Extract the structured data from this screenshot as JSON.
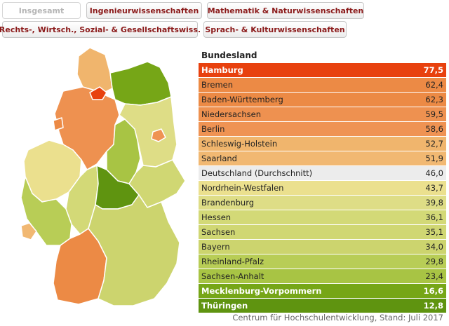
{
  "tabs": [
    {
      "label": "Insgesamt",
      "active": true
    },
    {
      "label": "Ingenieurwissenschaften",
      "active": false
    },
    {
      "label": "Mathematik & Naturwissenschaften",
      "active": false
    },
    {
      "label": "Rechts-, Wirtsch., Sozial- & Gesellschaftswiss.",
      "active": false
    },
    {
      "label": "Sprach- & Kulturwissenschaften",
      "active": false
    }
  ],
  "table": {
    "header": "Bundesland",
    "rows": [
      {
        "name": "Hamburg",
        "value": "77,5",
        "color": "#e8410e",
        "dark": true
      },
      {
        "name": "Bremen",
        "value": "62,4",
        "color": "#ec8a45",
        "dark": false
      },
      {
        "name": "Baden-Württemberg",
        "value": "62,3",
        "color": "#ec8a45",
        "dark": false
      },
      {
        "name": "Niedersachsen",
        "value": "59,5",
        "color": "#ee9150",
        "dark": false
      },
      {
        "name": "Berlin",
        "value": "58,6",
        "color": "#ef9353",
        "dark": false
      },
      {
        "name": "Schleswig-Holstein",
        "value": "52,7",
        "color": "#f0b56d",
        "dark": false
      },
      {
        "name": "Saarland",
        "value": "51,9",
        "color": "#f1b872",
        "dark": false
      },
      {
        "name": "Deutschland (Durchschnitt)",
        "value": "46,0",
        "color": "#ececec",
        "dark": false
      },
      {
        "name": "Nordrhein-Westfalen",
        "value": "43,7",
        "color": "#ebe08e",
        "dark": false
      },
      {
        "name": "Brandenburg",
        "value": "39,8",
        "color": "#dedd86",
        "dark": false
      },
      {
        "name": "Hessen",
        "value": "36,1",
        "color": "#d3d977",
        "dark": false
      },
      {
        "name": "Sachsen",
        "value": "35,1",
        "color": "#d0d773",
        "dark": false
      },
      {
        "name": "Bayern",
        "value": "34,0",
        "color": "#ccd46e",
        "dark": false
      },
      {
        "name": "Rheinland-Pfalz",
        "value": "29,8",
        "color": "#b8cd56",
        "dark": false
      },
      {
        "name": "Sachsen-Anhalt",
        "value": "23,4",
        "color": "#a8c444",
        "dark": false
      },
      {
        "name": "Mecklenburg-Vorpommern",
        "value": "16,6",
        "color": "#76a617",
        "dark": true
      },
      {
        "name": "Thüringen",
        "value": "12,8",
        "color": "#5f9410",
        "dark": true
      }
    ]
  },
  "footer": "Centrum für Hochschulentwicklung, Stand: Juli 2017"
}
